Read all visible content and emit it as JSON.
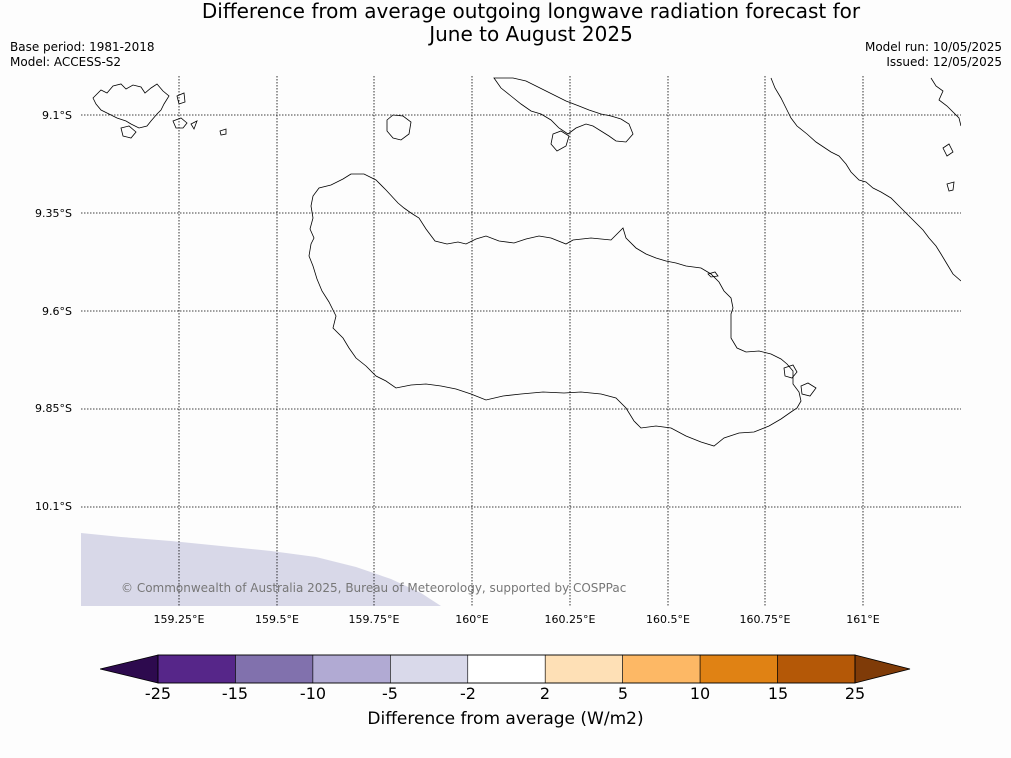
{
  "title": {
    "line1": "Difference from average outgoing longwave radiation forecast for",
    "line2": "June to August 2025"
  },
  "meta": {
    "base_period": "Base period: 1981-2018",
    "model": "Model: ACCESS-S2",
    "model_run": "Model run: 10/05/2025",
    "issued": "Issued: 12/05/2025"
  },
  "map": {
    "latitude_labels": [
      "9.1°S",
      "9.35°S",
      "9.6°S",
      "9.85°S",
      "10.1°S"
    ],
    "longitude_labels": [
      "159.25°E",
      "159.5°E",
      "159.75°E",
      "160°E",
      "160.25°E",
      "160.5°E",
      "160.75°E",
      "161°E"
    ],
    "shaded_class": "-5 to -2",
    "shaded_color": "#d8d8e8",
    "copyright": "© Commonwealth of Australia 2025, Bureau of Meteorology, supported by COSPPac"
  },
  "colorbar": {
    "ticks": [
      "-25",
      "-15",
      "-10",
      "-5",
      "-2",
      "2",
      "5",
      "10",
      "15",
      "25"
    ],
    "colors": {
      "below_min": "#2d0a4e",
      "bins": [
        "#562689",
        "#8171ad",
        "#b1aad3",
        "#d9d9ea",
        "#ffffff",
        "#fee0b6",
        "#fdb865",
        "#e08214",
        "#b45807"
      ],
      "above_max": "#7f3b08"
    },
    "label": "Difference from average (W/m2)"
  }
}
